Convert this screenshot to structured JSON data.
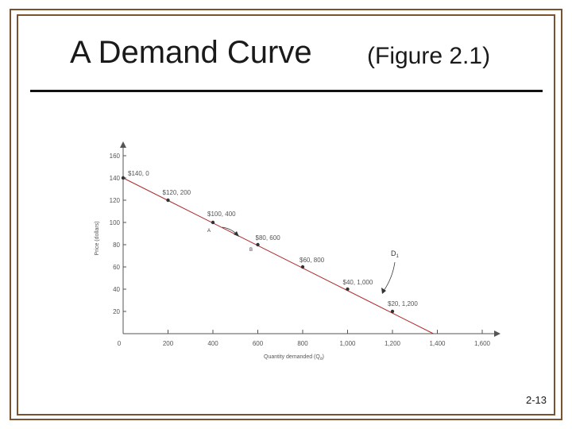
{
  "slide": {
    "title": "A Demand Curve",
    "subtitle": "(Figure 2.1)",
    "slide_number": "2-13"
  },
  "chart_data": {
    "type": "line",
    "title": "",
    "xlabel": "Quantity demanded (Q",
    "xlabel_sub": "d",
    "xlabel_end": ")",
    "ylabel": "Price (dollars)",
    "xlim": [
      0,
      1600
    ],
    "ylim": [
      0,
      160
    ],
    "x_ticks": [
      0,
      200,
      400,
      600,
      800,
      1000,
      1200,
      1400,
      1600
    ],
    "x_tick_labels": [
      "0",
      "200",
      "400",
      "600",
      "800",
      "1,000",
      "1,200",
      "1,400",
      "1,600"
    ],
    "y_ticks": [
      20,
      40,
      60,
      80,
      100,
      120,
      140,
      160
    ],
    "y_tick_labels": [
      "20",
      "40",
      "60",
      "80",
      "100",
      "120",
      "140",
      "160"
    ],
    "series": [
      {
        "x": [
          0,
          1400
        ],
        "y": [
          140,
          0
        ],
        "color": "#b03030"
      }
    ],
    "points": [
      {
        "x": 0,
        "y": 140,
        "label": "$140, 0"
      },
      {
        "x": 200,
        "y": 120,
        "label": "$120, 200"
      },
      {
        "x": 400,
        "y": 100,
        "label": "$100, 400"
      },
      {
        "x": 600,
        "y": 80,
        "label": "$80, 600"
      },
      {
        "x": 800,
        "y": 60,
        "label": "$60, 800"
      },
      {
        "x": 1000,
        "y": 40,
        "label": "$40, 1,000"
      },
      {
        "x": 1200,
        "y": 20,
        "label": "$20, 1,200"
      }
    ],
    "annotations": {
      "point_a": "A",
      "point_b": "B",
      "curve_label": "D",
      "curve_label_sub": "1"
    }
  }
}
